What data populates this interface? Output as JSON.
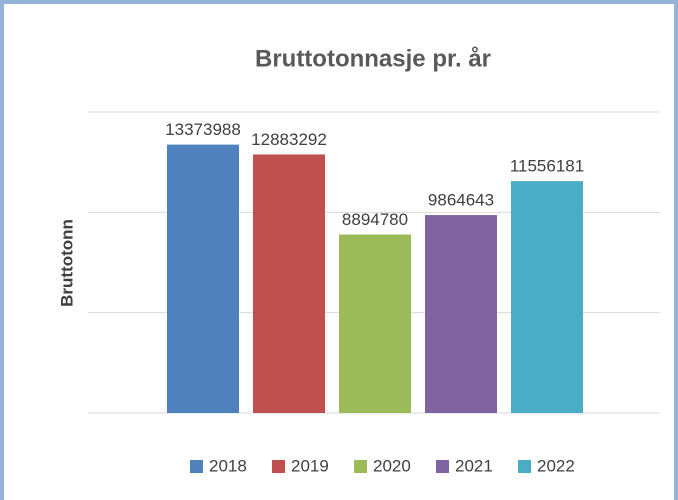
{
  "chart_data": {
    "type": "bar",
    "title": "Bruttotonnasje pr. år",
    "y_label": "Bruttotonn",
    "series": [
      {
        "name": "2018",
        "color": "#4f81bd",
        "values": [
          13373988
        ]
      },
      {
        "name": "2019",
        "color": "#c0504d",
        "values": [
          12883292
        ]
      },
      {
        "name": "2020",
        "color": "#9bbb59",
        "values": [
          8894780
        ]
      },
      {
        "name": "2021",
        "color": "#8064a2",
        "values": [
          9864643
        ]
      },
      {
        "name": "2022",
        "color": "#4bacc6",
        "values": [
          11556181
        ]
      }
    ],
    "ylim": [
      0,
      15000000
    ],
    "yticks": [
      0,
      5000000,
      10000000,
      15000000
    ],
    "grid": true,
    "legend": "bottom"
  }
}
